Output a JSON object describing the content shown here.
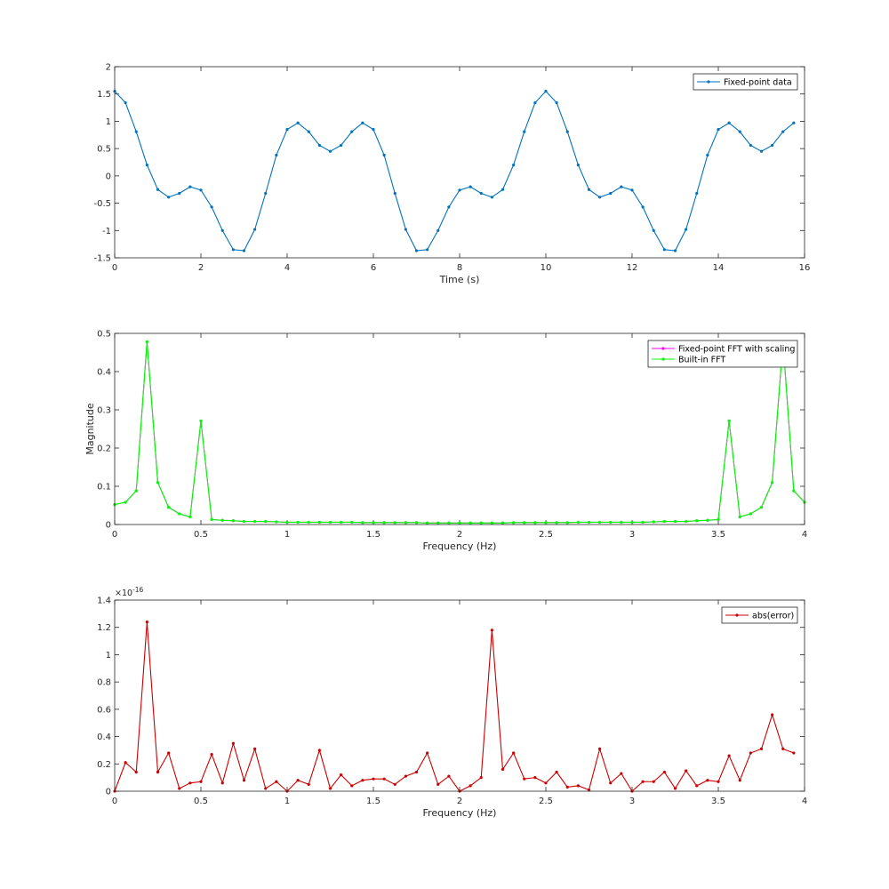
{
  "chart_data": [
    {
      "type": "line",
      "xlabel": "Time (s)",
      "ylabel": "",
      "xlim": [
        0,
        16
      ],
      "ylim": [
        -1.5,
        2
      ],
      "xticks": [
        "0",
        "2",
        "4",
        "6",
        "8",
        "10",
        "12",
        "14",
        "16"
      ],
      "yticks": [
        "-1.5",
        "-1",
        "-0.5",
        "0",
        "0.5",
        "1",
        "1.5",
        "2"
      ],
      "legend_position": "top-right",
      "series": [
        {
          "name": "Fixed-point data",
          "color": "#0072BD",
          "x": [
            0,
            0.25,
            0.5,
            0.75,
            1,
            1.25,
            1.5,
            1.75,
            2,
            2.25,
            2.5,
            2.75,
            3,
            3.25,
            3.5,
            3.75,
            4,
            4.25,
            4.5,
            4.75,
            5,
            5.25,
            5.5,
            5.75,
            6,
            6.25,
            6.5,
            6.75,
            7,
            7.25,
            7.5,
            7.75,
            8,
            8.25,
            8.5,
            8.75,
            9,
            9.25,
            9.5,
            9.75,
            10,
            10.25,
            10.5,
            10.75,
            11,
            11.25,
            11.5,
            11.75,
            12,
            12.25,
            12.5,
            12.75,
            13,
            13.25,
            13.5,
            13.75,
            14,
            14.25,
            14.5,
            14.75,
            15,
            15.25,
            15.5,
            15.75
          ],
          "values": [
            1.55,
            1.34,
            0.81,
            0.2,
            -0.25,
            -0.39,
            -0.32,
            -0.2,
            -0.26,
            -0.57,
            -1.0,
            -1.35,
            -1.37,
            -0.98,
            -0.32,
            0.38,
            0.85,
            0.97,
            0.81,
            0.56,
            0.45,
            0.56,
            0.81,
            0.97,
            0.85,
            0.38,
            -0.32,
            -0.98,
            -1.37,
            -1.35,
            -1.0,
            -0.57,
            -0.26,
            -0.2,
            -0.32,
            -0.39,
            -0.25,
            0.2,
            0.81,
            1.34,
            1.55,
            1.34,
            0.81,
            0.2,
            -0.25,
            -0.39,
            -0.32,
            -0.2,
            -0.26,
            -0.57,
            -1.0,
            -1.35,
            -1.37,
            -0.98,
            -0.32,
            0.38,
            0.85,
            0.97,
            0.81,
            0.56,
            0.45,
            0.56,
            0.81,
            0.97
          ]
        }
      ]
    },
    {
      "type": "line",
      "xlabel": "Frequency (Hz)",
      "ylabel": "Magnitude",
      "xlim": [
        0,
        4
      ],
      "ylim": [
        0,
        0.5
      ],
      "xticks": [
        "0",
        "0.5",
        "1",
        "1.5",
        "2",
        "2.5",
        "3",
        "3.5",
        "4"
      ],
      "yticks": [
        "0",
        "0.1",
        "0.2",
        "0.3",
        "0.4",
        "0.5"
      ],
      "legend_position": "top-right",
      "series": [
        {
          "name": "Fixed-point FFT with scaling",
          "color": "#FF00FF",
          "x_start": 0,
          "x_step": 0.0625,
          "values": [
            0.052,
            0.058,
            0.088,
            0.478,
            0.11,
            0.045,
            0.028,
            0.02,
            0.271,
            0.013,
            0.011,
            0.01,
            0.008,
            0.008,
            0.008,
            0.007,
            0.006,
            0.006,
            0.006,
            0.006,
            0.006,
            0.006,
            0.006,
            0.005,
            0.005,
            0.005,
            0.005,
            0.005,
            0.005,
            0.004,
            0.004,
            0.004,
            0.004,
            0.004,
            0.004,
            0.004,
            0.004,
            0.005,
            0.005,
            0.005,
            0.005,
            0.005,
            0.005,
            0.006,
            0.006,
            0.006,
            0.006,
            0.006,
            0.006,
            0.006,
            0.007,
            0.008,
            0.008,
            0.008,
            0.01,
            0.011,
            0.013,
            0.271,
            0.02,
            0.028,
            0.045,
            0.11,
            0.478,
            0.088,
            0.058
          ]
        },
        {
          "name": "Built-in FFT",
          "color": "#00FF00",
          "x_start": 0,
          "x_step": 0.0625,
          "values": [
            0.052,
            0.058,
            0.088,
            0.478,
            0.11,
            0.045,
            0.028,
            0.02,
            0.271,
            0.013,
            0.011,
            0.01,
            0.008,
            0.008,
            0.008,
            0.007,
            0.006,
            0.006,
            0.006,
            0.006,
            0.006,
            0.006,
            0.006,
            0.005,
            0.005,
            0.005,
            0.005,
            0.005,
            0.005,
            0.004,
            0.004,
            0.004,
            0.004,
            0.004,
            0.004,
            0.004,
            0.004,
            0.005,
            0.005,
            0.005,
            0.005,
            0.005,
            0.005,
            0.006,
            0.006,
            0.006,
            0.006,
            0.006,
            0.006,
            0.006,
            0.007,
            0.008,
            0.008,
            0.008,
            0.01,
            0.011,
            0.013,
            0.271,
            0.02,
            0.028,
            0.045,
            0.11,
            0.478,
            0.088,
            0.058
          ]
        }
      ]
    },
    {
      "type": "line",
      "xlabel": "Frequency (Hz)",
      "ylabel": "",
      "xlim": [
        0,
        4
      ],
      "ylim": [
        0,
        1.4
      ],
      "y_exponent": "-16",
      "xticks": [
        "0",
        "0.5",
        "1",
        "1.5",
        "2",
        "2.5",
        "3",
        "3.5",
        "4"
      ],
      "yticks": [
        "0",
        "0.2",
        "0.4",
        "0.6",
        "0.8",
        "1",
        "1.2",
        "1.4"
      ],
      "legend_position": "top-right",
      "series": [
        {
          "name": "abs(error)",
          "color": "#CC0000",
          "x_start": 0,
          "x_step": 0.0625,
          "values": [
            0.0,
            0.21,
            0.14,
            1.24,
            0.14,
            0.28,
            0.02,
            0.06,
            0.07,
            0.27,
            0.06,
            0.35,
            0.08,
            0.31,
            0.02,
            0.07,
            0.0,
            0.08,
            0.05,
            0.3,
            0.02,
            0.12,
            0.04,
            0.08,
            0.09,
            0.09,
            0.05,
            0.11,
            0.14,
            0.28,
            0.05,
            0.11,
            0.0,
            0.04,
            0.1,
            1.18,
            0.16,
            0.28,
            0.09,
            0.1,
            0.06,
            0.14,
            0.03,
            0.04,
            0.01,
            0.31,
            0.06,
            0.13,
            0.0,
            0.07,
            0.07,
            0.14,
            0.02,
            0.15,
            0.04,
            0.08,
            0.07,
            0.26,
            0.08,
            0.28,
            0.31,
            0.56,
            0.31,
            0.28
          ]
        }
      ]
    }
  ]
}
